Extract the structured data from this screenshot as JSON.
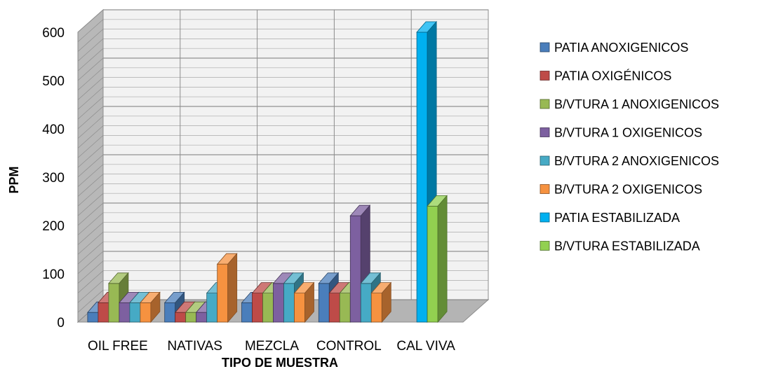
{
  "chart_data": {
    "type": "bar",
    "subtype": "3d-clustered-column",
    "title": "",
    "xlabel": "TIPO DE MUESTRA",
    "ylabel": "PPM",
    "ylim": [
      0,
      600
    ],
    "yticks": [
      0,
      100,
      200,
      300,
      400,
      500,
      600
    ],
    "grid": true,
    "legend_position": "right",
    "categories": [
      "OIL FREE",
      "NATIVAS",
      "MEZCLA",
      "CONTROL",
      "CAL VIVA"
    ],
    "series": [
      {
        "name": "PATIA ANOXIGENICOS",
        "color": "#4a7ebb",
        "values": [
          20,
          40,
          40,
          80,
          null
        ]
      },
      {
        "name": "PATIA OXIGÉNICOS",
        "color": "#be4b48",
        "values": [
          40,
          20,
          60,
          60,
          null
        ]
      },
      {
        "name": "B/VTURA 1 ANOXIGENICOS",
        "color": "#98b954",
        "values": [
          80,
          20,
          60,
          60,
          null
        ]
      },
      {
        "name": "B/VTURA 1      OXIGENICOS",
        "color": "#7d60a0",
        "values": [
          40,
          20,
          80,
          220,
          null
        ]
      },
      {
        "name": "B/VTURA 2 ANOXIGENICOS",
        "color": "#46aac5",
        "values": [
          40,
          60,
          80,
          80,
          null
        ]
      },
      {
        "name": "B/VTURA 2   OXIGENICOS",
        "color": "#f69240",
        "values": [
          40,
          120,
          60,
          60,
          null
        ]
      },
      {
        "name": "PATIA ESTABILIZADA",
        "color": "#00b0f0",
        "values": [
          null,
          null,
          null,
          null,
          600
        ]
      },
      {
        "name": "B/VTURA ESTABILIZADA",
        "color": "#92d050",
        "values": [
          null,
          null,
          null,
          null,
          240
        ]
      }
    ]
  }
}
